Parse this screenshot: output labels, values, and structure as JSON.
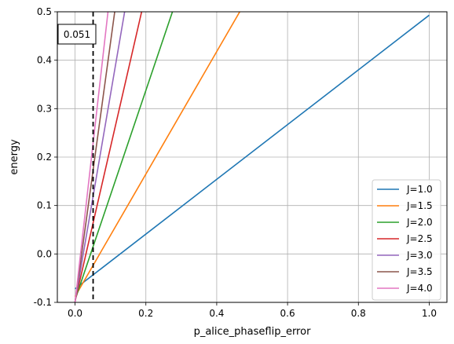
{
  "chart_data": {
    "type": "line",
    "title": "",
    "xlabel": "p_alice_phaseflip_error",
    "ylabel": "energy",
    "xlim": [
      -0.05,
      1.05
    ],
    "ylim": [
      -0.1,
      0.5
    ],
    "xticks": [
      "0.0",
      "0.2",
      "0.4",
      "0.6",
      "0.8",
      "1.0"
    ],
    "xtick_values": [
      0.0,
      0.2,
      0.4,
      0.6,
      0.8,
      1.0
    ],
    "yticks": [
      "-0.1",
      "0.0",
      "0.1",
      "0.2",
      "0.3",
      "0.4",
      "0.5"
    ],
    "ytick_values": [
      -0.1,
      0.0,
      0.1,
      0.2,
      0.3,
      0.4,
      0.5
    ],
    "grid": true,
    "legend_position": "lower-right",
    "series": [
      {
        "name": "J=1.0",
        "color": "#1f77b4",
        "x": [
          0.0,
          1.0
        ],
        "y": [
          -0.072,
          0.493
        ]
      },
      {
        "name": "J=1.5",
        "color": "#ff7f0e",
        "x": [
          0.0,
          0.465
        ],
        "y": [
          -0.088,
          0.5
        ]
      },
      {
        "name": "J=2.0",
        "color": "#2ca02c",
        "x": [
          0.0,
          0.275
        ],
        "y": [
          -0.095,
          0.5
        ]
      },
      {
        "name": "J=2.5",
        "color": "#d62728",
        "x": [
          0.0,
          0.188
        ],
        "y": [
          -0.098,
          0.5
        ]
      },
      {
        "name": "J=3.0",
        "color": "#9467bd",
        "x": [
          0.0,
          0.14
        ],
        "y": [
          -0.099,
          0.5
        ]
      },
      {
        "name": "J=3.5",
        "color": "#8c564b",
        "x": [
          0.0,
          0.112
        ],
        "y": [
          -0.1,
          0.5
        ]
      },
      {
        "name": "J=4.0",
        "color": "#e377c2",
        "x": [
          0.0,
          0.093
        ],
        "y": [
          -0.1,
          0.5
        ]
      }
    ],
    "annotations": [
      {
        "type": "vline",
        "x": 0.051,
        "style": "dashed",
        "color": "#000000"
      },
      {
        "type": "text-box",
        "text": "0.051"
      }
    ]
  }
}
